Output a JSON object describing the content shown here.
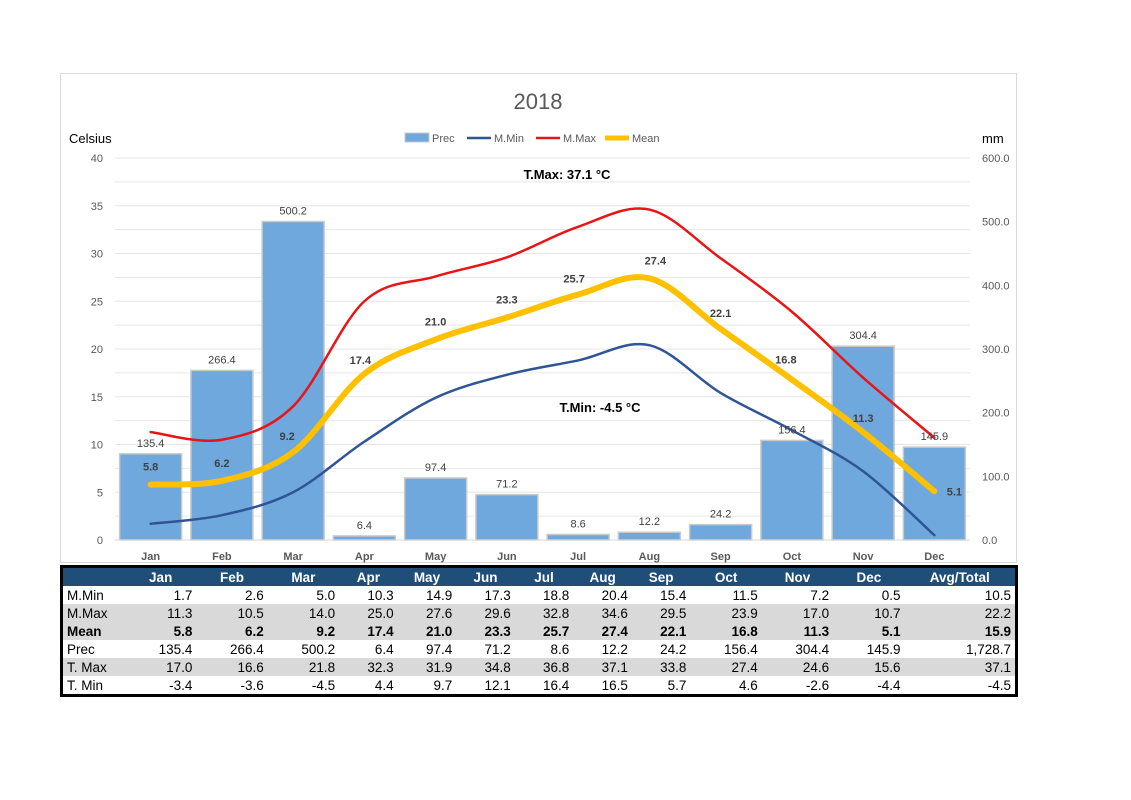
{
  "chart_data": {
    "type": "bar+line",
    "title": "2018",
    "ylabel_left": "Celsius",
    "ylabel_right": "mm",
    "categories": [
      "Jan",
      "Feb",
      "Mar",
      "Apr",
      "May",
      "Jun",
      "Jul",
      "Aug",
      "Sep",
      "Oct",
      "Nov",
      "Dec"
    ],
    "ylim_left": [
      0,
      40
    ],
    "yticks_left": [
      "0",
      "5",
      "10",
      "15",
      "20",
      "25",
      "30",
      "35",
      "40"
    ],
    "ylim_right": [
      0,
      600
    ],
    "yticks_right": [
      "0.0",
      "100.0",
      "200.0",
      "300.0",
      "400.0",
      "500.0",
      "600.0"
    ],
    "legend_position": "top",
    "grid": true,
    "series": [
      {
        "name": "Prec",
        "kind": "bar",
        "axis": "right",
        "color": "#6fa8dc",
        "values": [
          135.4,
          266.4,
          500.2,
          6.4,
          97.4,
          71.2,
          8.6,
          12.2,
          24.2,
          156.4,
          304.4,
          145.9
        ],
        "labels": [
          "135.4",
          "266.4",
          "500.2",
          "6.4",
          "97.4",
          "71.2",
          "8.6",
          "12.2",
          "24.2",
          "156.4",
          "304.4",
          "145.9"
        ]
      },
      {
        "name": "M.Min",
        "kind": "line",
        "axis": "left",
        "color": "#2f5597",
        "values": [
          1.7,
          2.6,
          5.0,
          10.3,
          14.9,
          17.3,
          18.8,
          20.4,
          15.4,
          11.5,
          7.2,
          0.5
        ]
      },
      {
        "name": "M.Max",
        "kind": "line",
        "axis": "left",
        "color": "#e81416",
        "values": [
          11.3,
          10.5,
          14.0,
          25.0,
          27.6,
          29.6,
          32.8,
          34.6,
          29.5,
          23.9,
          17.0,
          10.7
        ]
      },
      {
        "name": "Mean",
        "kind": "line",
        "axis": "left",
        "color": "#ffc000",
        "values": [
          5.8,
          6.2,
          9.2,
          17.4,
          21.0,
          23.3,
          25.7,
          27.4,
          22.1,
          16.8,
          11.3,
          5.1
        ],
        "labels": [
          "5.8",
          "6.2",
          "9.2",
          "17.4",
          "21.0",
          "23.3",
          "25.7",
          "27.4",
          "22.1",
          "16.8",
          "11.3",
          "5.1"
        ]
      }
    ],
    "annotations": [
      {
        "text": "T.Max: 37.1 °C"
      },
      {
        "text": "T.Min: -4.5 °C"
      }
    ]
  },
  "table": {
    "headers": [
      "",
      "Jan",
      "Feb",
      "Mar",
      "Apr",
      "May",
      "Jun",
      "Jul",
      "Aug",
      "Sep",
      "Oct",
      "Nov",
      "Dec",
      "Avg/Total"
    ],
    "rows": [
      {
        "label": "M.Min",
        "cells": [
          "1.7",
          "2.6",
          "5.0",
          "10.3",
          "14.9",
          "17.3",
          "18.8",
          "20.4",
          "15.4",
          "11.5",
          "7.2",
          "0.5",
          "10.5"
        ],
        "shade": false,
        "bold": false
      },
      {
        "label": "M.Max",
        "cells": [
          "11.3",
          "10.5",
          "14.0",
          "25.0",
          "27.6",
          "29.6",
          "32.8",
          "34.6",
          "29.5",
          "23.9",
          "17.0",
          "10.7",
          "22.2"
        ],
        "shade": true,
        "bold": false
      },
      {
        "label": "Mean",
        "cells": [
          "5.8",
          "6.2",
          "9.2",
          "17.4",
          "21.0",
          "23.3",
          "25.7",
          "27.4",
          "22.1",
          "16.8",
          "11.3",
          "5.1",
          "15.9"
        ],
        "shade": true,
        "bold": true
      },
      {
        "label": "Prec",
        "cells": [
          "135.4",
          "266.4",
          "500.2",
          "6.4",
          "97.4",
          "71.2",
          "8.6",
          "12.2",
          "24.2",
          "156.4",
          "304.4",
          "145.9",
          "1,728.7"
        ],
        "shade": false,
        "bold": false
      },
      {
        "label": "T. Max",
        "cells": [
          "17.0",
          "16.6",
          "21.8",
          "32.3",
          "31.9",
          "34.8",
          "36.8",
          "37.1",
          "33.8",
          "27.4",
          "24.6",
          "15.6",
          "37.1"
        ],
        "shade": true,
        "bold": false
      },
      {
        "label": "T. Min",
        "cells": [
          "-3.4",
          "-3.6",
          "-4.5",
          "4.4",
          "9.7",
          "12.1",
          "16.4",
          "16.5",
          "5.7",
          "4.6",
          "-2.6",
          "-4.4",
          "-4.5"
        ],
        "shade": false,
        "bold": false
      }
    ]
  }
}
